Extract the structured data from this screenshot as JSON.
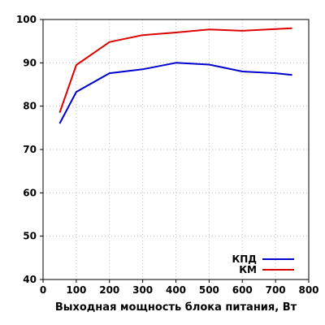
{
  "chart_data": {
    "type": "line",
    "title": "",
    "xlabel": "Выходная мощность блока питания, Вт",
    "ylabel": "",
    "xlim": [
      0,
      800
    ],
    "ylim": [
      40,
      100
    ],
    "xticks": [
      "0",
      "100",
      "200",
      "300",
      "400",
      "500",
      "600",
      "700",
      "800"
    ],
    "yticks": [
      "40",
      "50",
      "60",
      "70",
      "80",
      "90",
      "100"
    ],
    "grid": true,
    "legend_position": "bottom-right",
    "series": [
      {
        "name": "КПД",
        "color": "#0000cc",
        "x": [
          50,
          100,
          200,
          300,
          400,
          500,
          600,
          700,
          750
        ],
        "y": [
          76,
          83.3,
          87.6,
          88.5,
          90,
          89.6,
          88,
          87.6,
          87.2
        ]
      },
      {
        "name": "КМ",
        "color": "#dd0000",
        "x": [
          50,
          100,
          200,
          300,
          400,
          500,
          600,
          700,
          750
        ],
        "y": [
          78.5,
          89.5,
          94.8,
          96.4,
          97,
          97.7,
          97.4,
          97.8,
          98
        ]
      }
    ]
  }
}
